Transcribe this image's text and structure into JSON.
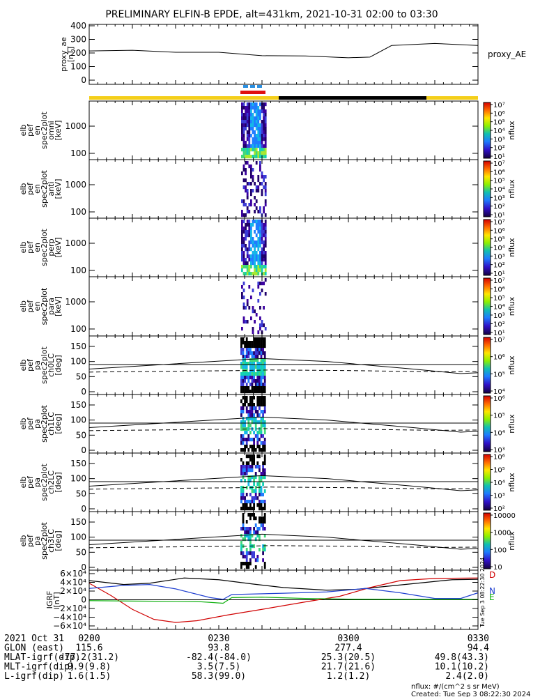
{
  "title": "PRELIMINARY ELFIN-B EPDE, alt=431km, 2021-10-31 02:00 to 03:30",
  "ae_panel": {
    "ylabel": "proxy_ae\n[nT]",
    "legend": "proxy_AE",
    "yticks": [
      "400",
      "300",
      "200",
      "100",
      "0"
    ],
    "ylim": [
      0,
      400
    ],
    "x": [
      0,
      10,
      20,
      30,
      40,
      50,
      60,
      65,
      70,
      80,
      90
    ],
    "y": [
      215,
      220,
      205,
      205,
      180,
      178,
      165,
      170,
      255,
      270,
      255
    ]
  },
  "spin_bars": {
    "blue": "#2b8fe0",
    "red": "#e01010"
  },
  "status_bar": {
    "sunlight_color": "#f4cf1a",
    "shadow_color": "#000000"
  },
  "energy_panels": [
    {
      "ylabel": "elb\npef\nen\nspec2plot\nomni\n[keV]",
      "yticks": [
        "1000",
        "100"
      ],
      "zlabel": "nflux",
      "zticks": [
        "10⁷",
        "10⁶",
        "10⁵",
        "10⁴",
        "10³",
        "10²",
        "10¹"
      ]
    },
    {
      "ylabel": "elb\npef\nen\nspec2plot\nanti\n[keV]",
      "yticks": [
        "1000",
        "100"
      ],
      "zlabel": "nflux",
      "zticks": [
        "10⁷",
        "10⁶",
        "10⁵",
        "10⁴",
        "10³",
        "10²",
        "10¹"
      ]
    },
    {
      "ylabel": "elb\npef\nen\nspec2plot\nperp\n[keV]",
      "yticks": [
        "1000",
        "100"
      ],
      "zlabel": "nflux",
      "zticks": [
        "10⁷",
        "10⁶",
        "10⁵",
        "10⁴",
        "10³",
        "10²",
        "10¹"
      ]
    },
    {
      "ylabel": "elb\npef\nen\nspec2plot\npara\n[keV]",
      "yticks": [
        "1000",
        "100"
      ],
      "zlabel": "nflux",
      "zticks": [
        "10⁷",
        "10⁶",
        "10⁵",
        "10⁴",
        "10³",
        "10²",
        "10¹"
      ]
    }
  ],
  "pa_panels": [
    {
      "ylabel": "elb\npef\npa\nspec2plot\nch0LC\n[deg]",
      "yticks": [
        "150",
        "100",
        "50",
        "0"
      ],
      "zlabel": "nflux",
      "zticks": [
        "10⁷",
        "10⁶",
        "10⁵",
        "10⁴"
      ]
    },
    {
      "ylabel": "elb\npef\npa\nspec2plot\nch1LC\n[deg]",
      "yticks": [
        "150",
        "100",
        "50",
        "0"
      ],
      "zlabel": "nflux",
      "zticks": [
        "10⁶",
        "10⁵",
        "10⁴",
        "10³"
      ]
    },
    {
      "ylabel": "elb\npef\npa\nspec2plot\nch2LC\n[deg]",
      "yticks": [
        "150",
        "100",
        "50",
        "0"
      ],
      "zlabel": "nflux",
      "zticks": [
        "10⁶",
        "10⁵",
        "10⁴",
        "10³",
        "10²"
      ]
    },
    {
      "ylabel": "elb\npef\npa\nspec2plot\nch3LC\n[deg]",
      "yticks": [
        "150",
        "100",
        "50",
        "0"
      ],
      "zlabel": "nflux",
      "zticks": [
        "10000",
        "1000",
        "100",
        "10"
      ]
    }
  ],
  "igrf_panel": {
    "ylabel": "IGRF\n[nT]",
    "yticks": [
      "6×10⁴",
      "4×10⁴",
      "2×10⁴",
      "0",
      "−2×10⁴",
      "−4×10⁴",
      "−6×10⁴"
    ],
    "ylim": [
      -60000,
      60000
    ],
    "legend": [
      "D",
      "N",
      "E"
    ],
    "series_colors": {
      "D": "#d00000",
      "N": "#1f3fd0",
      "E": "#10b010",
      "total": "#000000"
    },
    "side_note": "Tue Sep 3 08:22:30 2024"
  },
  "footer": {
    "rows": [
      {
        "label": "2021 Oct 31",
        "values": [
          "0200",
          "0230",
          "0300",
          "0330"
        ]
      },
      {
        "label": "GLON (east)",
        "values": [
          "115.6",
          "93.8",
          "277.4",
          "94.4"
        ]
      },
      {
        "label": "MLAT-igrf(dip)",
        "values": [
          "-77.2(31.2)",
          "-82.4(-84.0)",
          "25.3(20.5)",
          "49.8(43.3)"
        ]
      },
      {
        "label": "MLT-igrf(dip)",
        "values": [
          "9.9(9.8)",
          "3.5(7.5)",
          "21.7(21.6)",
          "10.1(10.2)"
        ]
      },
      {
        "label": "L-igrf(dip)",
        "values": [
          "1.6(1.5)",
          "58.3(99.0)",
          "1.2(1.2)",
          "2.4(2.0)"
        ]
      }
    ],
    "units_note": "nflux: #/(cm^2 s sr MeV)",
    "created": "Created: Tue Sep  3 08:22:30 2024"
  },
  "chart_data": {
    "type": "heatmap",
    "title": "PRELIMINARY ELFIN-B EPDE, alt=431km, 2021-10-31 02:00 to 03:30",
    "x_ticks": [
      "0200",
      "0230",
      "0300",
      "0330"
    ],
    "xlim_minutes": [
      0,
      90
    ],
    "series": [
      {
        "name": "proxy_AE",
        "x": [
          0,
          10,
          20,
          30,
          40,
          50,
          60,
          65,
          70,
          80,
          90
        ],
        "values": [
          215,
          220,
          205,
          205,
          180,
          178,
          165,
          170,
          255,
          270,
          255
        ]
      }
    ],
    "energy_ylim_keV": [
      60,
      7000
    ],
    "pitch_angle_ylim_deg": [
      0,
      180
    ],
    "data_interval_minutes": [
      38,
      42.5
    ]
  }
}
